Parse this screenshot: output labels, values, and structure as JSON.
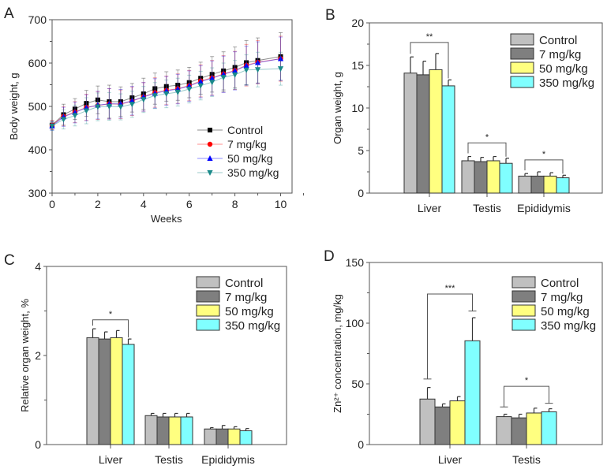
{
  "groups": [
    "Control",
    "7 mg/kg",
    "50 mg/kg",
    "350 mg/kg"
  ],
  "group_colors": [
    "#c0c0c0",
    "#7f7f7f",
    "#ffff80",
    "#80ffff"
  ],
  "chart_data": [
    {
      "panel": "A",
      "type": "line",
      "xlabel": "Weeks",
      "ylabel": "Body weight, g",
      "xlim": [
        0,
        10.5
      ],
      "ylim": [
        300,
        700
      ],
      "xticks": [
        0,
        2,
        4,
        6,
        8,
        10
      ],
      "yticks": [
        300,
        400,
        500,
        600,
        700
      ],
      "legend": "lower-right",
      "x": [
        0,
        0.5,
        1,
        1.5,
        2,
        2.5,
        3,
        3.5,
        4,
        4.5,
        5,
        5.5,
        6,
        6.5,
        7,
        7.5,
        8,
        8.5,
        9,
        10
      ],
      "series": [
        {
          "name": "Control",
          "color": "#000000",
          "marker": "square",
          "values": [
            457,
            481,
            494,
            507,
            515,
            511,
            511,
            520,
            529,
            541,
            546,
            549,
            555,
            565,
            574,
            582,
            590,
            601,
            606,
            615
          ],
          "sd": [
            10,
            24,
            24,
            30,
            32,
            38,
            34,
            33,
            36,
            36,
            34,
            35,
            35,
            37,
            41,
            44,
            47,
            51,
            52,
            55
          ]
        },
        {
          "name": "7 mg/kg",
          "color": "#ff0000",
          "marker": "circle",
          "values": [
            457,
            477,
            487,
            498,
            502,
            506,
            505,
            512,
            522,
            532,
            537,
            541,
            548,
            559,
            566,
            575,
            583,
            595,
            602,
            610
          ],
          "sd": [
            10,
            22,
            24,
            30,
            32,
            35,
            33,
            33,
            33,
            34,
            33,
            34,
            35,
            37,
            40,
            42,
            44,
            48,
            50,
            52
          ]
        },
        {
          "name": "50 mg/kg",
          "color": "#0000ff",
          "marker": "triangle-up",
          "values": [
            455,
            476,
            486,
            497,
            503,
            506,
            506,
            513,
            522,
            530,
            536,
            540,
            547,
            557,
            565,
            574,
            582,
            594,
            601,
            610
          ],
          "sd": [
            10,
            22,
            24,
            30,
            32,
            35,
            33,
            33,
            33,
            34,
            33,
            34,
            35,
            37,
            40,
            42,
            44,
            45,
            48,
            50
          ]
        },
        {
          "name": "350 mg/kg",
          "color": "#1a8a8a",
          "marker": "triangle-down",
          "values": [
            455,
            470,
            479,
            490,
            499,
            500,
            499,
            505,
            516,
            525,
            529,
            533,
            540,
            548,
            556,
            567,
            573,
            584,
            585,
            587
          ],
          "sd": [
            10,
            22,
            24,
            30,
            32,
            32,
            30,
            30,
            30,
            30,
            32,
            32,
            32,
            33,
            33,
            33,
            33,
            35,
            40,
            38
          ]
        }
      ]
    },
    {
      "panel": "B",
      "type": "bar",
      "ylabel": "Organ weight, g",
      "ylim": [
        0,
        20
      ],
      "yticks": [
        0,
        5,
        10,
        15,
        20
      ],
      "legend": "top-right",
      "categories": [
        "Liver",
        "Testis",
        "Epididymis"
      ],
      "series": [
        {
          "name": "Control",
          "values": [
            14.1,
            3.8,
            2.0
          ],
          "sd": [
            1.9,
            0.5,
            0.3
          ]
        },
        {
          "name": "7 mg/kg",
          "values": [
            13.9,
            3.7,
            2.0
          ],
          "sd": [
            1.6,
            0.5,
            0.5
          ]
        },
        {
          "name": "50 mg/kg",
          "values": [
            14.5,
            3.8,
            2.0
          ],
          "sd": [
            1.9,
            0.5,
            0.4
          ]
        },
        {
          "name": "350 mg/kg",
          "values": [
            12.6,
            3.5,
            1.8
          ],
          "sd": [
            0.7,
            0.6,
            0.3
          ]
        }
      ],
      "annotations": [
        {
          "category": "Liver",
          "label": "**",
          "level": 17.7
        },
        {
          "category": "Testis",
          "label": "*",
          "level": 5.9
        },
        {
          "category": "Epididymis",
          "label": "*",
          "level": 3.9
        }
      ]
    },
    {
      "panel": "C",
      "type": "bar",
      "ylabel": "Relative organ weight, %",
      "ylim": [
        0,
        4
      ],
      "yticks": [
        0,
        2,
        4
      ],
      "legend": "top-right",
      "categories": [
        "Liver",
        "Testis",
        "Epididymis"
      ],
      "series": [
        {
          "name": "Control",
          "values": [
            2.4,
            0.65,
            0.35
          ],
          "sd": [
            0.2,
            0.05,
            0.03
          ]
        },
        {
          "name": "7 mg/kg",
          "values": [
            2.37,
            0.62,
            0.35
          ],
          "sd": [
            0.16,
            0.08,
            0.08
          ]
        },
        {
          "name": "50 mg/kg",
          "values": [
            2.4,
            0.62,
            0.35
          ],
          "sd": [
            0.16,
            0.08,
            0.05
          ]
        },
        {
          "name": "350 mg/kg",
          "values": [
            2.25,
            0.62,
            0.31
          ],
          "sd": [
            0.12,
            0.08,
            0.05
          ]
        }
      ],
      "annotations": [
        {
          "category": "Liver",
          "label": "*",
          "level": 2.8
        }
      ]
    },
    {
      "panel": "D",
      "type": "bar",
      "ylabel": "Zn²⁺ concentration, mg/kg",
      "ylim": [
        0,
        150
      ],
      "yticks": [
        0,
        50,
        100,
        150
      ],
      "legend": "top-right",
      "categories": [
        "Liver",
        "Testis"
      ],
      "series": [
        {
          "name": "Control",
          "values": [
            37.5,
            23
          ],
          "sd": [
            9.5,
            2
          ]
        },
        {
          "name": "7 mg/kg",
          "values": [
            31,
            22
          ],
          "sd": [
            2.5,
            3
          ]
        },
        {
          "name": "50 mg/kg",
          "values": [
            36,
            26
          ],
          "sd": [
            3.5,
            4
          ]
        },
        {
          "name": "350 mg/kg",
          "values": [
            85.5,
            27
          ],
          "sd": [
            19,
            2.5
          ]
        }
      ],
      "annotations": [
        {
          "category": "Liver",
          "label": "***",
          "level": 124,
          "left_end": 54,
          "right_end": 110
        },
        {
          "category": "Testis",
          "label": "*",
          "level": 48,
          "left_end": 31,
          "right_end": 34
        }
      ]
    }
  ]
}
